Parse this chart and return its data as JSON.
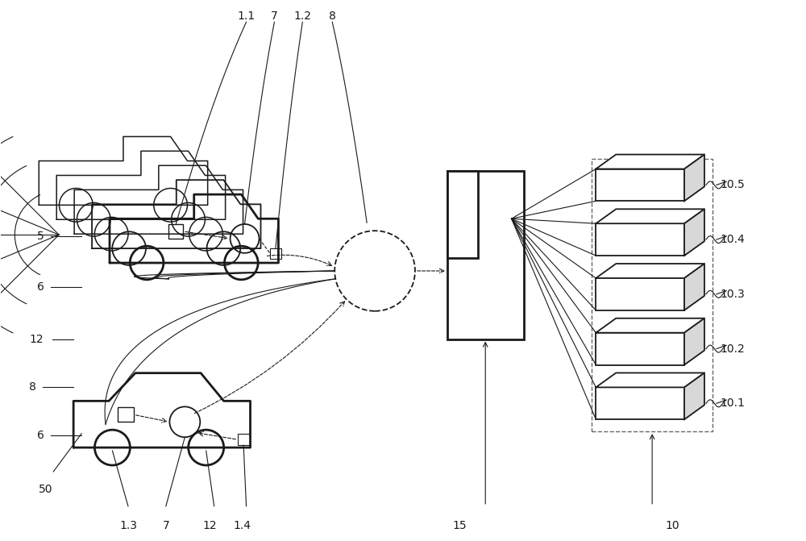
{
  "bg_color": "#ffffff",
  "line_color": "#1a1a1a",
  "label_color": "#1a1a1a",
  "fig_w": 10.0,
  "fig_h": 6.71,
  "dpi": 100
}
